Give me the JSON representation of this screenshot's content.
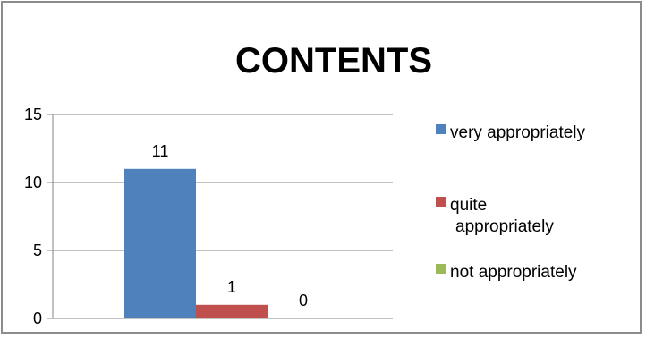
{
  "chart_data": {
    "type": "bar",
    "title": "CONTENTS",
    "xlabel": "",
    "ylabel": "",
    "ylim": [
      0,
      15
    ],
    "yticks": [
      0,
      5,
      10,
      15
    ],
    "grid": true,
    "legend_position": "right",
    "categories": [
      ""
    ],
    "series": [
      {
        "name": "very appropriately",
        "values": [
          11
        ],
        "color": "#4f81bd",
        "data_label": "11"
      },
      {
        "name": "quite appropriately",
        "values": [
          1
        ],
        "color": "#c0504d",
        "data_label": "1"
      },
      {
        "name": "not appropriately",
        "values": [
          0
        ],
        "color": "#9bbb59",
        "data_label": "0"
      }
    ],
    "legend_lines": [
      [
        "very appropriately"
      ],
      [
        "quite",
        "appropriately"
      ],
      [
        "not appropriately"
      ]
    ]
  }
}
